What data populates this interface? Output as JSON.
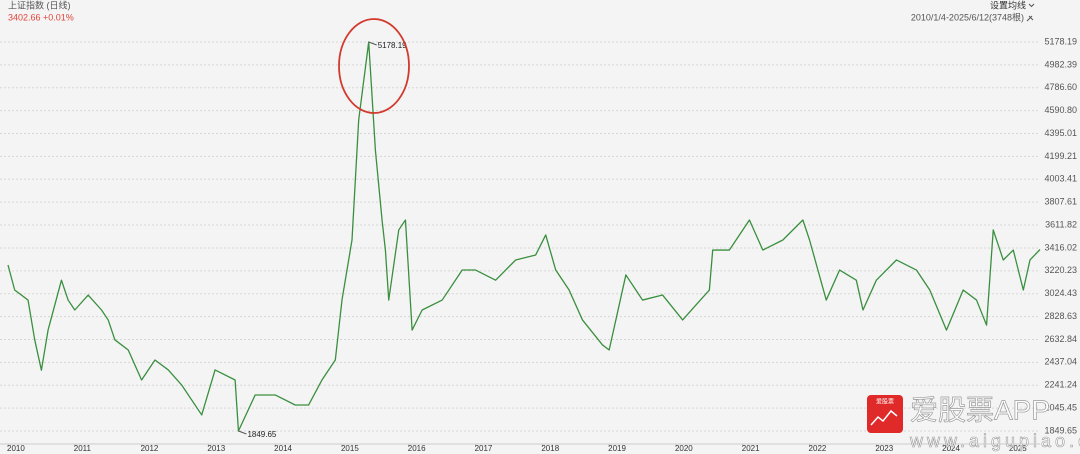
{
  "header": {
    "title": "上证指数 (日线)",
    "quote": "3402.66 +0.01%",
    "settings": "设置均线",
    "range": "2010/1/4-2025/6/12(3748根)"
  },
  "watermark": {
    "logo": "爱股票",
    "brand": "爱股票APP",
    "url": "www.aigupiao.com"
  },
  "chart_data": {
    "type": "line",
    "color": "#3a8f3f",
    "grid": true,
    "x": [
      2010.0,
      2010.1,
      2010.3,
      2010.4,
      2010.5,
      2010.6,
      2010.8,
      2010.9,
      2011.0,
      2011.2,
      2011.4,
      2011.5,
      2011.6,
      2011.8,
      2012.0,
      2012.2,
      2012.4,
      2012.6,
      2012.9,
      2013.1,
      2013.4,
      2013.45,
      2013.7,
      2014.0,
      2014.3,
      2014.5,
      2014.7,
      2014.9,
      2015.0,
      2015.15,
      2015.25,
      2015.4,
      2015.5,
      2015.6,
      2015.65,
      2015.7,
      2015.85,
      2015.95,
      2016.05,
      2016.2,
      2016.5,
      2016.8,
      2017.0,
      2017.3,
      2017.6,
      2017.9,
      2018.05,
      2018.2,
      2018.4,
      2018.6,
      2018.9,
      2019.0,
      2019.25,
      2019.5,
      2019.8,
      2020.1,
      2020.3,
      2020.5,
      2020.55,
      2020.8,
      2021.1,
      2021.3,
      2021.6,
      2021.9,
      2022.0,
      2022.25,
      2022.45,
      2022.7,
      2022.8,
      2023.0,
      2023.3,
      2023.6,
      2023.8,
      2024.05,
      2024.3,
      2024.5,
      2024.65,
      2024.75,
      2024.9,
      2025.05,
      2025.2,
      2025.3,
      2025.45
    ],
    "values": [
      3270,
      3056,
      2970,
      2630,
      2370,
      2713,
      3140,
      2970,
      2885,
      3013,
      2885,
      2800,
      2630,
      2543,
      2286,
      2457,
      2372,
      2243,
      1987,
      2372,
      2286,
      1849.65,
      2158,
      2158,
      2072,
      2072,
      2286,
      2457,
      2970,
      3484,
      4510,
      5178.19,
      4254,
      3655,
      3398,
      2970,
      3570,
      3655,
      2713,
      2885,
      2970,
      3227,
      3227,
      3140,
      3313,
      3356,
      3527,
      3227,
      3056,
      2800,
      2586,
      2543,
      3185,
      2970,
      3013,
      2800,
      2928,
      3056,
      3398,
      3398,
      3655,
      3398,
      3484,
      3655,
      3484,
      2970,
      3227,
      3140,
      2885,
      3140,
      3313,
      3227,
      3056,
      2713,
      3056,
      2970,
      2756,
      3570,
      3313,
      3398,
      3056,
      3313,
      3402.66
    ],
    "xlim": [
      2010,
      2025.45
    ],
    "xticks": [
      2010,
      2011,
      2012,
      2013,
      2014,
      2015,
      2016,
      2017,
      2018,
      2019,
      2020,
      2021,
      2022,
      2023,
      2024,
      2025
    ],
    "ylim": [
      1849.65,
      5178.19
    ],
    "yticks": [
      1849.65,
      2045.45,
      2241.24,
      2437.04,
      2632.84,
      2828.63,
      3024.43,
      3220.23,
      3416.02,
      3611.82,
      3807.61,
      4003.41,
      4199.21,
      4395.01,
      {
        "value": 4590.8,
        "label": "4590.80"
      },
      {
        "value": 4786.6,
        "label": "4786.60"
      },
      4982.39,
      5178.19
    ],
    "annotations": [
      {
        "text": "5178.19",
        "x": 2015.4,
        "y": 5178.19
      },
      {
        "text": "1849.65",
        "x": 2013.45,
        "y": 1849.65
      }
    ]
  }
}
